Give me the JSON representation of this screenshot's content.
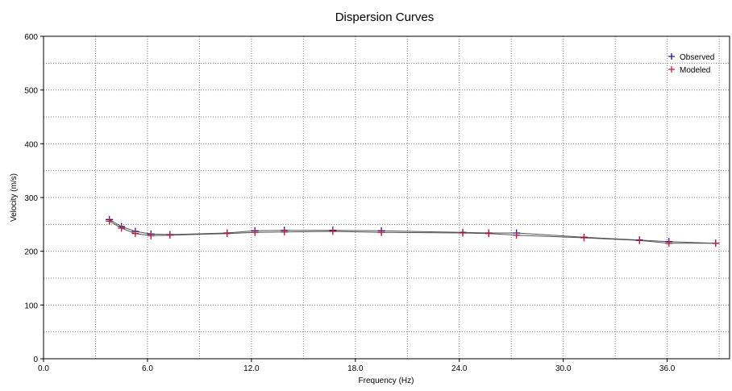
{
  "chart_data": {
    "type": "line",
    "title": "Dispersion Curves",
    "xlabel": "Frequency (Hz)",
    "ylabel": "Velocity (m/s)",
    "xlim": [
      0,
      39.6
    ],
    "ylim": [
      0,
      600
    ],
    "xticks": [
      "0.0",
      "6.0",
      "12.0",
      "18.0",
      "24.0",
      "30.0",
      "36.0"
    ],
    "yticks": [
      "0",
      "100",
      "200",
      "300",
      "400",
      "500",
      "600"
    ],
    "grid": true,
    "legend_position": "top-right",
    "series": [
      {
        "name": "Observed",
        "color": "#1a1a8c",
        "marker": "plus",
        "x": [
          3.8,
          4.5,
          5.3,
          6.2,
          7.3,
          10.6,
          12.2,
          13.9,
          16.7,
          19.5,
          24.2,
          25.7,
          27.3,
          31.2,
          34.4,
          36.1,
          38.8
        ],
        "y": [
          259,
          246,
          237,
          232,
          231,
          234,
          238,
          239,
          239,
          238,
          235,
          234,
          234,
          226,
          221,
          218,
          215
        ]
      },
      {
        "name": "Modeled",
        "color": "#c0203a",
        "marker": "plus",
        "x": [
          3.8,
          4.5,
          5.3,
          6.2,
          7.3,
          10.6,
          12.2,
          13.9,
          16.7,
          19.5,
          24.2,
          25.7,
          27.3,
          31.2,
          34.4,
          36.1,
          38.8
        ],
        "y": [
          256,
          243,
          233,
          229,
          230,
          233,
          235,
          236,
          237,
          235,
          234,
          233,
          230,
          225,
          220,
          215,
          215
        ]
      }
    ]
  }
}
